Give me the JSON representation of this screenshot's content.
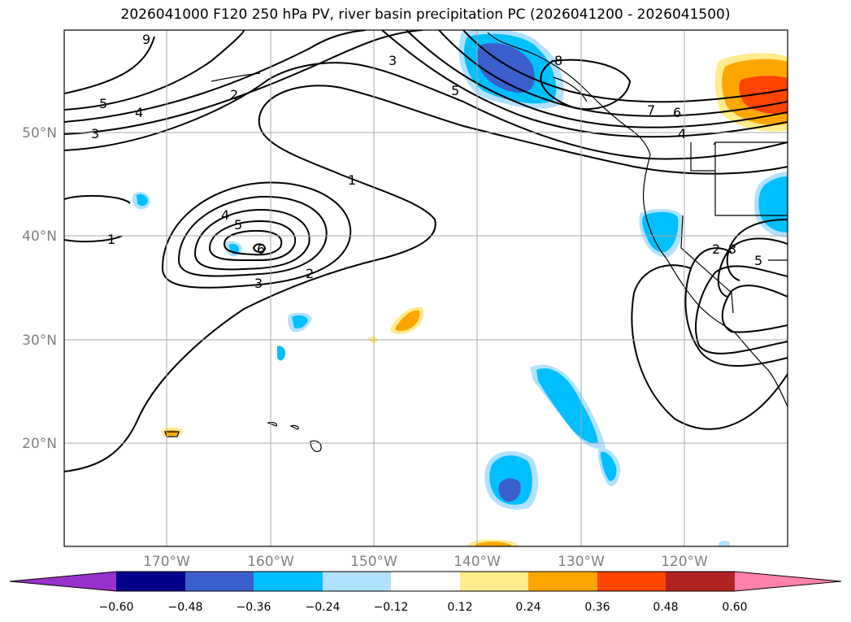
{
  "title": "2026041000 F120 250 hPa PV, river basin precipitation PC (2026041200 - 2026041500)",
  "map": {
    "lat_labels": [
      "50°N",
      "40°N",
      "30°N",
      "20°N"
    ],
    "lon_labels": [
      "170°W",
      "160°W",
      "150°W",
      "140°W",
      "130°W",
      "120°W"
    ],
    "contour_labels": [
      "9",
      "5",
      "4",
      "3",
      "2",
      "3",
      "5",
      "8",
      "7",
      "6",
      "4",
      "1",
      "4",
      "5",
      "6",
      "3",
      "2",
      "1",
      "2",
      "3",
      "5"
    ]
  },
  "colorbar": {
    "ticks": [
      "−0.60",
      "−0.48",
      "−0.36",
      "−0.24",
      "−0.12",
      "0.12",
      "0.24",
      "0.36",
      "0.48",
      "0.60"
    ],
    "colors": [
      "#9932cc",
      "#00008b",
      "#3a5fcd",
      "#00bfff",
      "#b0e2ff",
      "#ffffff",
      "#ffec8b",
      "#ffa500",
      "#ff4500",
      "#b22222",
      "#ff82ab"
    ]
  }
}
